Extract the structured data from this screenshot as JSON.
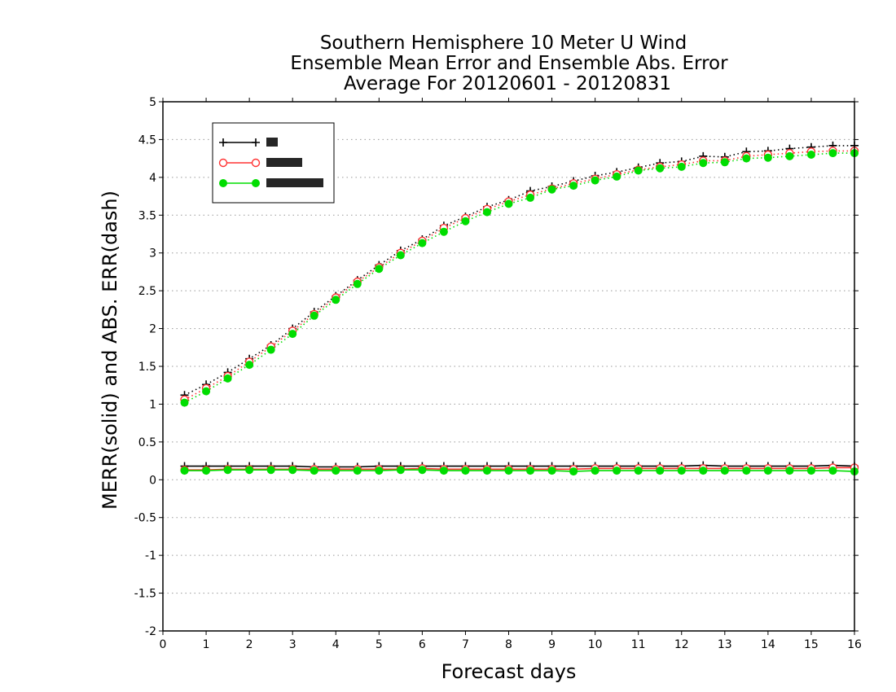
{
  "chart_data": {
    "type": "line",
    "title": [
      "Southern Hemisphere 10 Meter U Wind",
      "Ensemble Mean Error and Ensemble Abs. Error",
      "Average For 20120601 - 20120831"
    ],
    "xlabel": "Forecast days",
    "ylabel": "MERR(solid) and ABS. ERR(dash)",
    "xlim": [
      0,
      16
    ],
    "ylim": [
      -2,
      5
    ],
    "xticks": [
      0,
      1,
      2,
      3,
      4,
      5,
      6,
      7,
      8,
      9,
      10,
      11,
      12,
      13,
      14,
      15,
      16
    ],
    "yticks": [
      -2,
      -1.5,
      -1,
      -0.5,
      0,
      0.5,
      1,
      1.5,
      2,
      2.5,
      3,
      3.5,
      4,
      4.5,
      5
    ],
    "grid": "horizontal dotted",
    "legend_position": "top-left",
    "x": [
      0.5,
      1,
      1.5,
      2,
      2.5,
      3,
      3.5,
      4,
      4.5,
      5,
      5.5,
      6,
      6.5,
      7,
      7.5,
      8,
      8.5,
      9,
      9.5,
      10,
      10.5,
      11,
      11.5,
      12,
      12.5,
      13,
      13.5,
      14,
      14.5,
      15,
      15.5,
      16
    ],
    "series": [
      {
        "marker": "plus",
        "color": "#000000",
        "mean_error": [
          0.18,
          0.18,
          0.18,
          0.18,
          0.18,
          0.18,
          0.17,
          0.17,
          0.17,
          0.18,
          0.18,
          0.18,
          0.18,
          0.18,
          0.18,
          0.18,
          0.18,
          0.18,
          0.18,
          0.18,
          0.18,
          0.18,
          0.18,
          0.18,
          0.19,
          0.18,
          0.18,
          0.18,
          0.18,
          0.18,
          0.19,
          0.18
        ],
        "abs_error": [
          1.12,
          1.26,
          1.42,
          1.6,
          1.78,
          2.0,
          2.22,
          2.43,
          2.64,
          2.84,
          3.03,
          3.18,
          3.36,
          3.48,
          3.61,
          3.7,
          3.82,
          3.88,
          3.95,
          4.02,
          4.07,
          4.13,
          4.19,
          4.21,
          4.28,
          4.27,
          4.34,
          4.35,
          4.38,
          4.4,
          4.42,
          4.42
        ]
      },
      {
        "marker": "open-circle",
        "color": "#ff3333",
        "mean_error": [
          0.13,
          0.13,
          0.14,
          0.14,
          0.14,
          0.14,
          0.14,
          0.14,
          0.14,
          0.14,
          0.14,
          0.15,
          0.14,
          0.14,
          0.14,
          0.14,
          0.14,
          0.14,
          0.14,
          0.15,
          0.15,
          0.15,
          0.15,
          0.15,
          0.15,
          0.15,
          0.15,
          0.15,
          0.15,
          0.15,
          0.16,
          0.16
        ],
        "abs_error": [
          1.06,
          1.21,
          1.37,
          1.56,
          1.76,
          1.97,
          2.19,
          2.41,
          2.62,
          2.81,
          3.0,
          3.16,
          3.33,
          3.46,
          3.58,
          3.68,
          3.77,
          3.85,
          3.92,
          3.98,
          4.04,
          4.1,
          4.14,
          4.17,
          4.22,
          4.22,
          4.28,
          4.3,
          4.32,
          4.34,
          4.35,
          4.35
        ]
      },
      {
        "marker": "filled-circle",
        "color": "#00dd00",
        "mean_error": [
          0.12,
          0.12,
          0.13,
          0.13,
          0.13,
          0.13,
          0.12,
          0.12,
          0.12,
          0.12,
          0.13,
          0.13,
          0.12,
          0.12,
          0.12,
          0.12,
          0.12,
          0.12,
          0.11,
          0.12,
          0.12,
          0.12,
          0.12,
          0.12,
          0.12,
          0.12,
          0.12,
          0.12,
          0.12,
          0.12,
          0.12,
          0.11
        ],
        "abs_error": [
          1.02,
          1.17,
          1.34,
          1.52,
          1.72,
          1.93,
          2.17,
          2.38,
          2.59,
          2.79,
          2.97,
          3.13,
          3.28,
          3.42,
          3.54,
          3.65,
          3.73,
          3.84,
          3.89,
          3.96,
          4.01,
          4.09,
          4.12,
          4.14,
          4.19,
          4.2,
          4.25,
          4.26,
          4.28,
          4.3,
          4.32,
          4.32
        ]
      }
    ]
  }
}
